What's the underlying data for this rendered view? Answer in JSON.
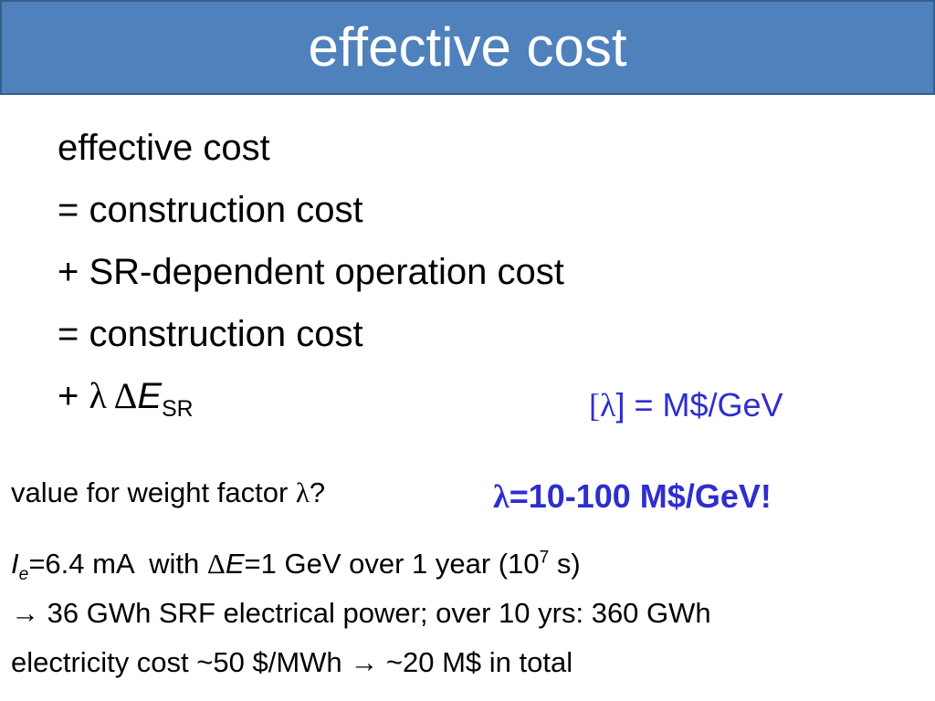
{
  "header": {
    "title": "effective cost"
  },
  "equation": {
    "lines": [
      "effective cost",
      "= construction cost",
      "+ SR-dependent operation cost",
      "= construction cost"
    ],
    "last": {
      "plus": "+ ",
      "lambda": "λ",
      "delta": " Δ",
      "E": "E",
      "sub": "SR"
    }
  },
  "unit": {
    "open": "[",
    "lambda": "λ",
    "rest": "] = M$/GeV"
  },
  "question": {
    "text": "value for weight factor ",
    "lambda": "λ",
    "mark": "?"
  },
  "answer": {
    "lambda": "λ",
    "text": "=10-100 M$/GeV!"
  },
  "notes": {
    "line1": {
      "I": "I",
      "e": "e",
      "a": "=6.4 mA  with ",
      "delta": "Δ",
      "E": "E",
      "b": "=1 GeV over 1 year (10",
      "exp": "7",
      "c": " s)"
    },
    "line2": "→ 36 GWh SRF electrical power; over 10 yrs: 360 GWh",
    "line3": "electricity cost ~50 $/MWh → ~20 M$ in total"
  }
}
